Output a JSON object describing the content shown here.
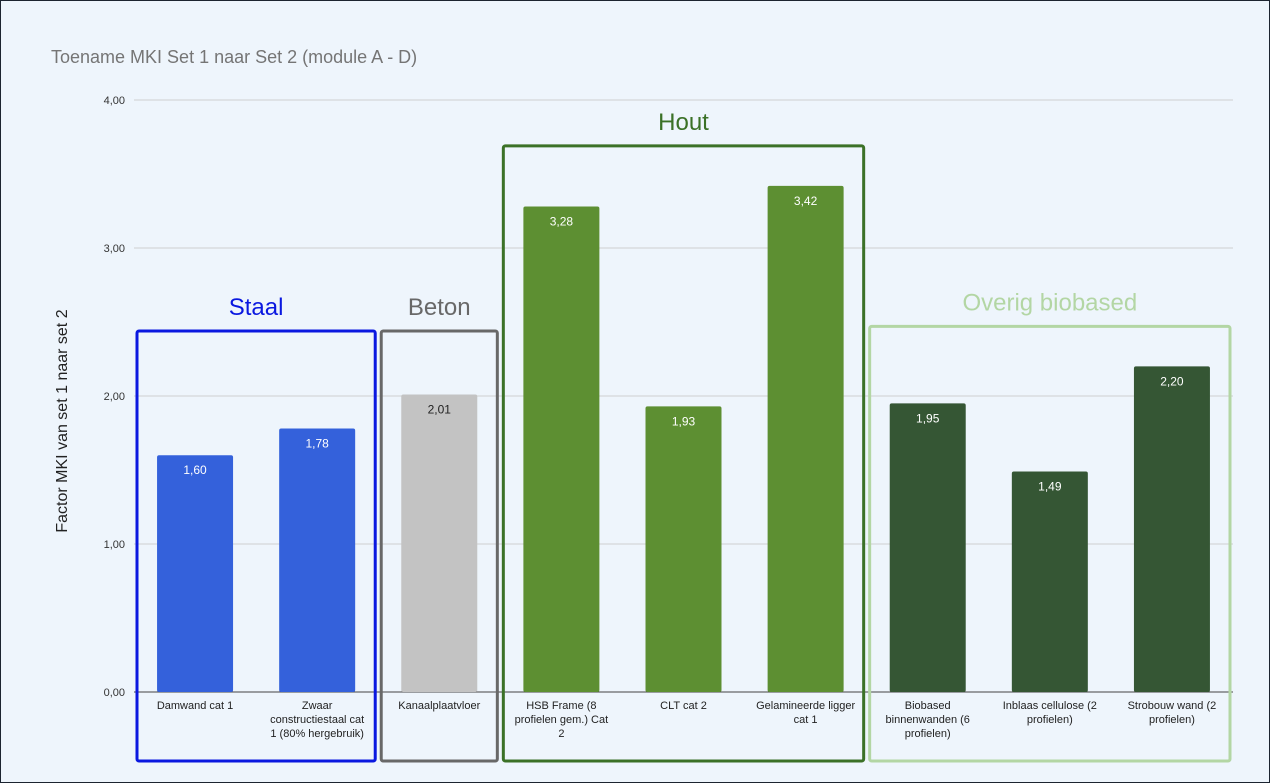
{
  "chart_data": {
    "type": "bar",
    "title": "Toename MKI Set 1 naar Set 2 (module A - D)",
    "xlabel": "",
    "ylabel": "Factor MKI van set 1 naar set 2",
    "ylim": [
      0,
      4
    ],
    "yticks": [
      "0,00",
      "1,00",
      "2,00",
      "3,00",
      "4,00"
    ],
    "grid": true,
    "categories": [
      "Damwand cat 1",
      "Zwaar constructiestaal cat 1 (80% hergebruik)",
      "Kanaalplaatvloer",
      "HSB Frame (8 profielen gem.) Cat 2",
      "CLT cat 2",
      "Gelamineerde ligger cat 1",
      "Biobased binnenwanden (6 profielen)",
      "Inblaas cellulose (2 profielen)",
      "Strobouw wand (2 profielen)"
    ],
    "category_lines": [
      [
        "Damwand cat 1"
      ],
      [
        "Zwaar",
        "constructiestaal cat",
        "1 (80% hergebruik)"
      ],
      [
        "Kanaalplaatvloer"
      ],
      [
        "HSB Frame (8",
        "profielen gem.) Cat",
        "2"
      ],
      [
        "CLT cat 2"
      ],
      [
        "Gelamineerde ligger",
        "cat 1"
      ],
      [
        "Biobased",
        "binnenwanden (6",
        "profielen)"
      ],
      [
        "Inblaas cellulose (2",
        "profielen)"
      ],
      [
        "Strobouw wand (2",
        "profielen)"
      ]
    ],
    "values": [
      1.6,
      1.78,
      2.01,
      3.28,
      1.93,
      3.42,
      1.95,
      1.49,
      2.2
    ],
    "value_labels": [
      "1,60",
      "1,78",
      "2,01",
      "3,28",
      "1,93",
      "3,42",
      "1,95",
      "1,49",
      "2,20"
    ],
    "bar_colors": [
      "#3461db",
      "#3461db",
      "#c3c3c3",
      "#5d8f32",
      "#5d8f32",
      "#5d8f32",
      "#355634",
      "#355634",
      "#355634"
    ],
    "value_label_colors": [
      "#ffffff",
      "#ffffff",
      "#222222",
      "#ffffff",
      "#ffffff",
      "#ffffff",
      "#ffffff",
      "#ffffff",
      "#ffffff"
    ],
    "groups": [
      {
        "label": "Staal",
        "color": "#0a18e0",
        "first": 0,
        "last": 1
      },
      {
        "label": "Beton",
        "color": "#686868",
        "first": 2,
        "last": 2
      },
      {
        "label": "Hout",
        "color": "#3b7127",
        "first": 3,
        "last": 5
      },
      {
        "label": "Overig biobased",
        "color": "#b3d6a4",
        "first": 6,
        "last": 8
      }
    ]
  }
}
